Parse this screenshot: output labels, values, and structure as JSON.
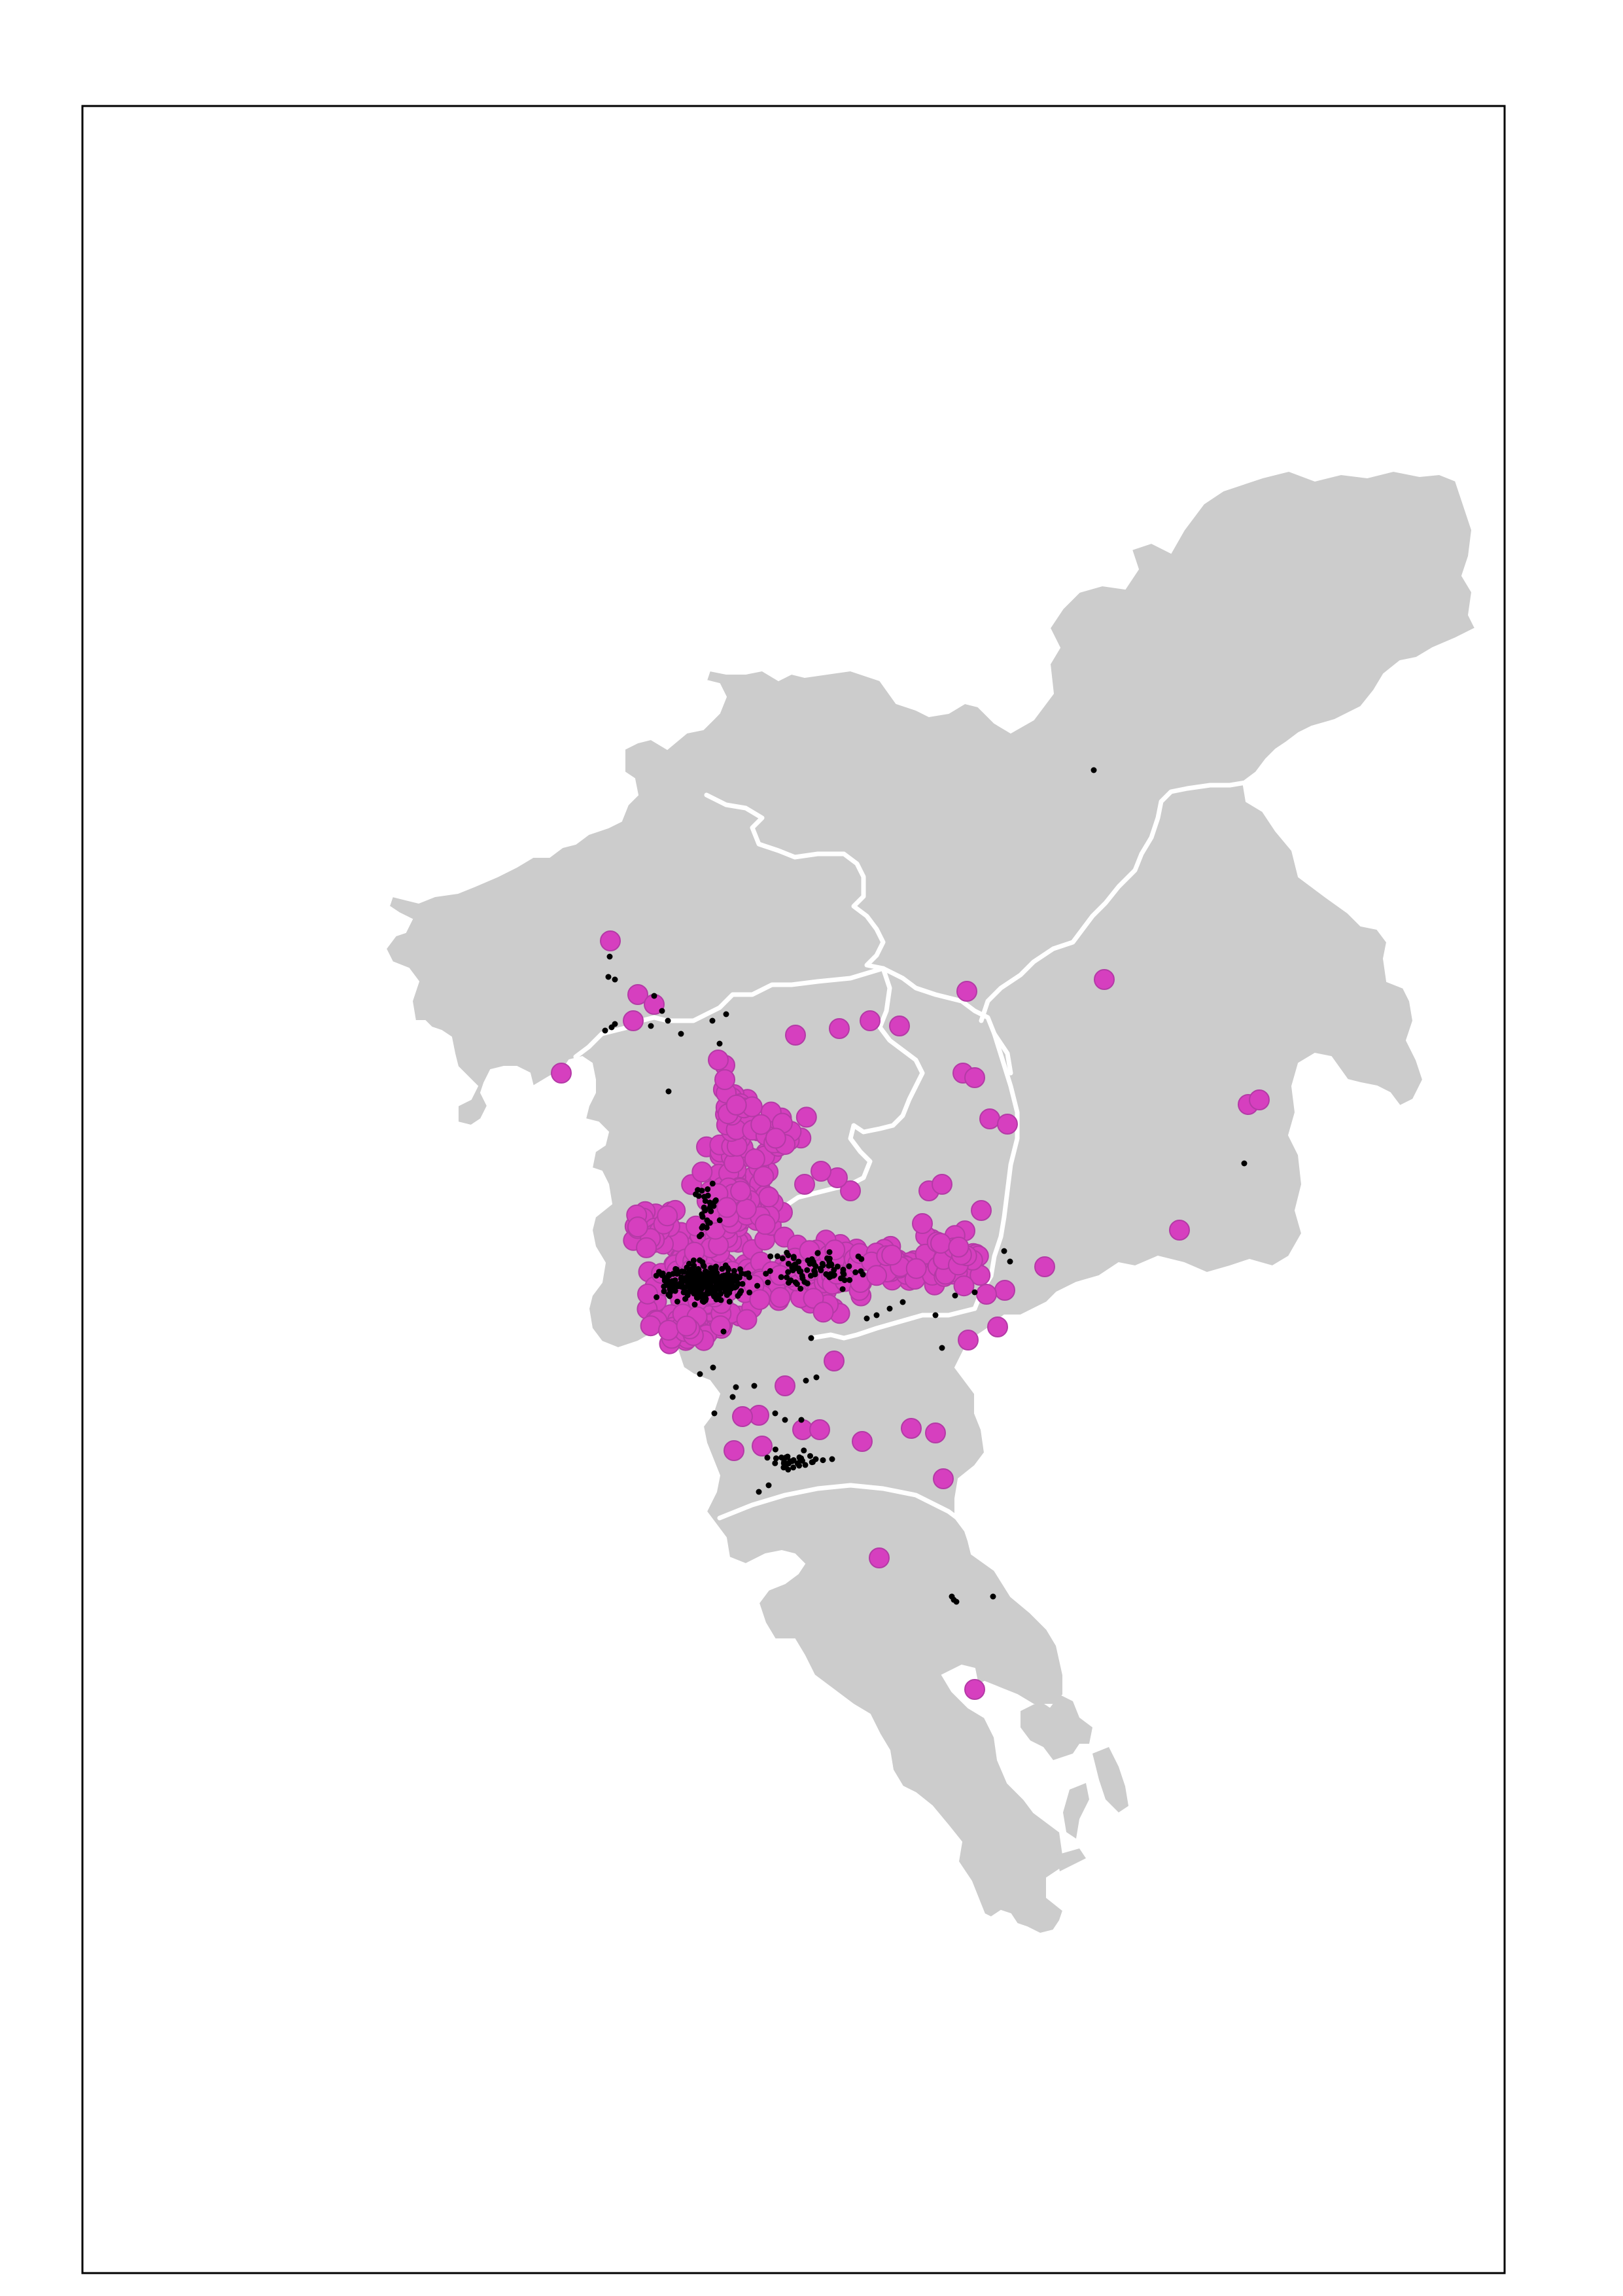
{
  "map": {
    "type": "point-map",
    "region_fill": "#cccccc",
    "boundary_color": "#ffffff",
    "frame_color": "#000000",
    "layers": [
      {
        "name": "large-markers",
        "color": "#d63fbf",
        "outline": "#b43aa6",
        "symbol": "filled-circle"
      },
      {
        "name": "small-markers",
        "color": "#000000",
        "symbol": "dot"
      }
    ]
  }
}
